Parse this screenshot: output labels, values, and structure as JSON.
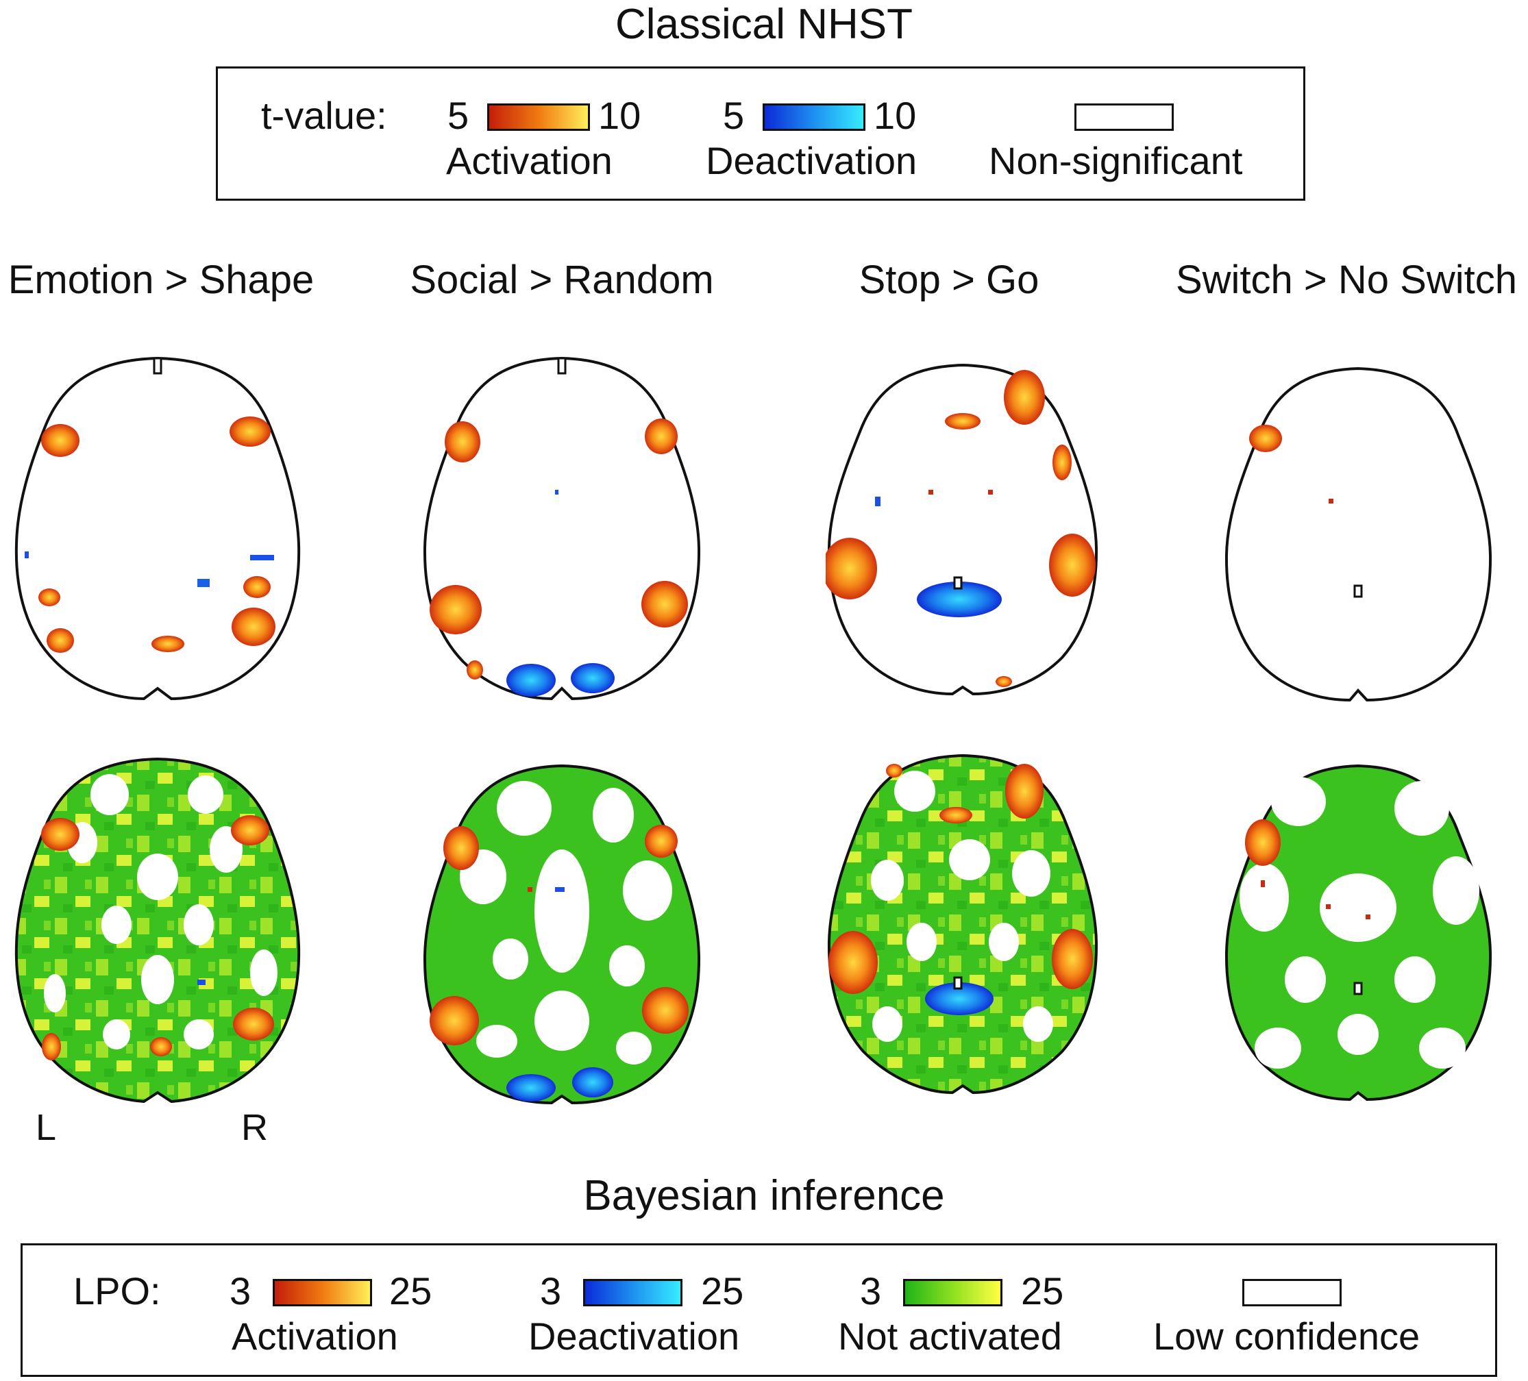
{
  "nhst": {
    "title": "Classical NHST",
    "legend": {
      "label": "t-value:",
      "activation": {
        "min": "5",
        "max": "10",
        "name": "Activation"
      },
      "deactivation": {
        "min": "5",
        "max": "10",
        "name": "Deactivation"
      },
      "nonsig": {
        "name": "Non-significant"
      }
    }
  },
  "columns": [
    {
      "title": "Emotion > Shape"
    },
    {
      "title": "Social > Random"
    },
    {
      "title": "Stop > Go"
    },
    {
      "title": "Switch > No Switch"
    }
  ],
  "orientation": {
    "left": "L",
    "right": "R"
  },
  "bayes": {
    "title": "Bayesian inference",
    "legend": {
      "label": "LPO:",
      "activation": {
        "min": "3",
        "max": "25",
        "name": "Activation"
      },
      "deactivation": {
        "min": "3",
        "max": "25",
        "name": "Deactivation"
      },
      "notact": {
        "min": "3",
        "max": "25",
        "name": "Not activated"
      },
      "lowconf": {
        "name": "Low confidence"
      }
    }
  },
  "colors": {
    "act_low": "#c8200a",
    "act_high": "#ffee55",
    "deact_low": "#1030dd",
    "deact_high": "#30e8ff",
    "not_low": "#22b818",
    "not_high": "#ffff40"
  }
}
